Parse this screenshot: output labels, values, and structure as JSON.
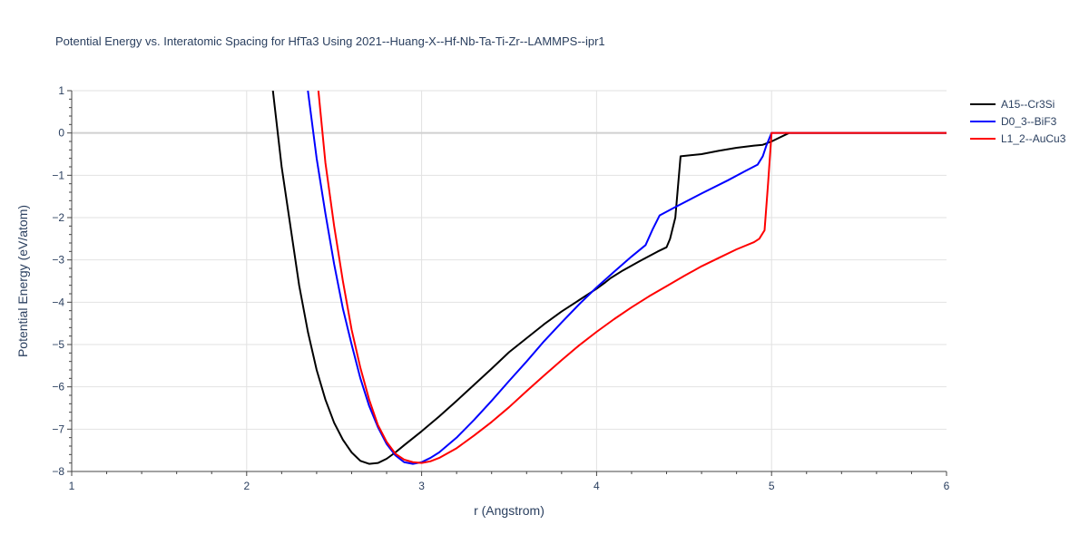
{
  "chart_data": {
    "type": "line",
    "title": "Potential Energy vs. Interatomic Spacing for HfTa3 Using 2021--Huang-X--Hf-Nb-Ta-Ti-Zr--LAMMPS--ipr1",
    "xlabel": "r (Angstrom)",
    "ylabel": "Potential Energy (eV/atom)",
    "xlim": [
      1,
      6
    ],
    "ylim": [
      -8,
      1
    ],
    "xticks": [
      "1",
      "2",
      "3",
      "4",
      "5",
      "6"
    ],
    "yticks": [
      "1",
      "0",
      "−1",
      "−2",
      "−3",
      "−4",
      "−5",
      "−6",
      "−7",
      "−8"
    ],
    "grid": true,
    "legend_position": "top-right",
    "series": [
      {
        "name": "A15--Cr3Si",
        "color": "#000000",
        "x": [
          2.15,
          2.2,
          2.25,
          2.3,
          2.35,
          2.4,
          2.45,
          2.5,
          2.55,
          2.6,
          2.65,
          2.7,
          2.75,
          2.8,
          2.85,
          2.9,
          3.0,
          3.1,
          3.2,
          3.3,
          3.4,
          3.5,
          3.6,
          3.7,
          3.8,
          3.9,
          4.0,
          4.05,
          4.08,
          4.15,
          4.25,
          4.35,
          4.4,
          4.42,
          4.45,
          4.48,
          4.6,
          4.7,
          4.8,
          4.9,
          4.95,
          5.0,
          5.1,
          5.5,
          6.0
        ],
        "y": [
          1.0,
          -0.8,
          -2.2,
          -3.6,
          -4.7,
          -5.6,
          -6.3,
          -6.85,
          -7.25,
          -7.55,
          -7.75,
          -7.82,
          -7.8,
          -7.7,
          -7.55,
          -7.38,
          -7.05,
          -6.7,
          -6.33,
          -5.95,
          -5.57,
          -5.18,
          -4.85,
          -4.52,
          -4.22,
          -3.95,
          -3.68,
          -3.53,
          -3.43,
          -3.25,
          -3.02,
          -2.8,
          -2.7,
          -2.5,
          -2.0,
          -0.55,
          -0.5,
          -0.42,
          -0.35,
          -0.3,
          -0.28,
          -0.2,
          0.0,
          0.0,
          0.0
        ]
      },
      {
        "name": "D0_3--BiF3",
        "color": "#0000ff",
        "x": [
          2.35,
          2.4,
          2.45,
          2.5,
          2.55,
          2.6,
          2.65,
          2.7,
          2.75,
          2.8,
          2.85,
          2.9,
          2.95,
          3.0,
          3.05,
          3.1,
          3.2,
          3.3,
          3.4,
          3.5,
          3.6,
          3.7,
          3.8,
          3.9,
          4.0,
          4.1,
          4.2,
          4.28,
          4.32,
          4.36,
          4.45,
          4.6,
          4.75,
          4.85,
          4.92,
          4.95,
          4.97,
          5.0,
          5.1,
          5.5,
          6.0
        ],
        "y": [
          1.0,
          -0.6,
          -1.9,
          -3.1,
          -4.15,
          -5.0,
          -5.8,
          -6.45,
          -6.95,
          -7.35,
          -7.62,
          -7.78,
          -7.82,
          -7.78,
          -7.68,
          -7.55,
          -7.2,
          -6.78,
          -6.33,
          -5.86,
          -5.4,
          -4.92,
          -4.48,
          -4.05,
          -3.65,
          -3.28,
          -2.92,
          -2.65,
          -2.28,
          -1.95,
          -1.75,
          -1.43,
          -1.12,
          -0.9,
          -0.75,
          -0.55,
          -0.3,
          0.0,
          0.0,
          0.0,
          0.0
        ]
      },
      {
        "name": "L1_2--AuCu3",
        "color": "#ff0000",
        "x": [
          2.41,
          2.45,
          2.5,
          2.55,
          2.6,
          2.65,
          2.7,
          2.75,
          2.8,
          2.85,
          2.9,
          2.95,
          3.0,
          3.05,
          3.1,
          3.2,
          3.3,
          3.4,
          3.5,
          3.6,
          3.7,
          3.8,
          3.9,
          4.0,
          4.1,
          4.2,
          4.3,
          4.4,
          4.5,
          4.6,
          4.7,
          4.8,
          4.9,
          4.93,
          4.96,
          4.98,
          5.0,
          5.1,
          5.5,
          6.0
        ],
        "y": [
          1.0,
          -0.7,
          -2.2,
          -3.5,
          -4.65,
          -5.55,
          -6.3,
          -6.9,
          -7.3,
          -7.58,
          -7.72,
          -7.78,
          -7.8,
          -7.76,
          -7.68,
          -7.45,
          -7.15,
          -6.83,
          -6.48,
          -6.1,
          -5.73,
          -5.37,
          -5.02,
          -4.7,
          -4.4,
          -4.12,
          -3.86,
          -3.62,
          -3.38,
          -3.15,
          -2.95,
          -2.75,
          -2.58,
          -2.5,
          -2.3,
          -1.2,
          0.0,
          0.0,
          0.0,
          0.0
        ]
      }
    ]
  }
}
